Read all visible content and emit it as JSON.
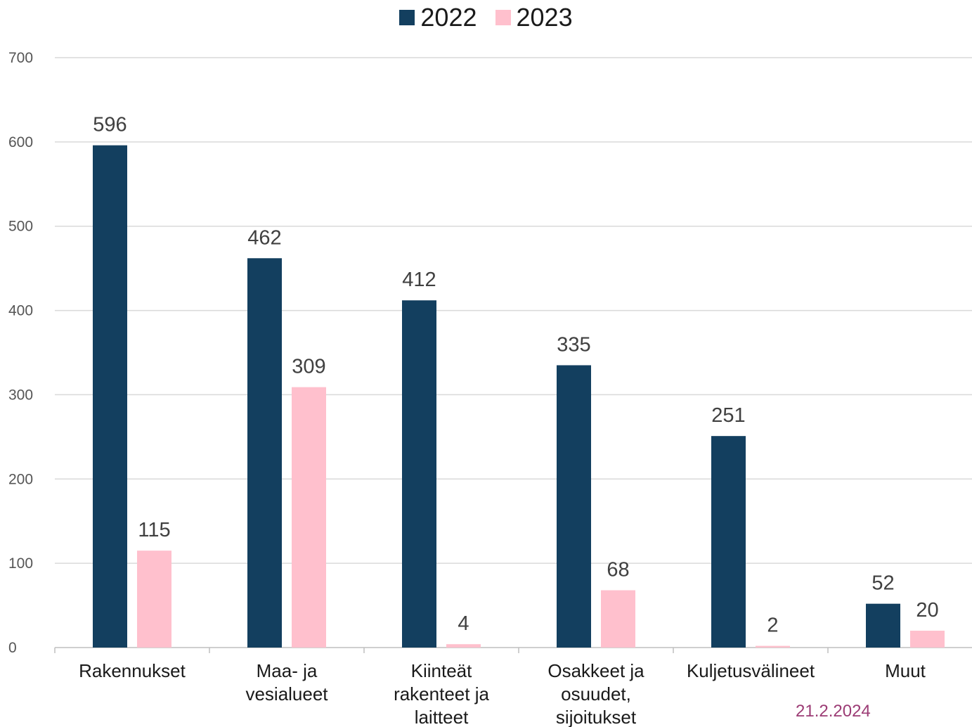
{
  "chart_data": {
    "type": "bar",
    "categories": [
      [
        "Rakennukset"
      ],
      [
        "Maa- ja",
        "vesialueet"
      ],
      [
        "Kiinteät",
        "rakenteet ja",
        "laitteet"
      ],
      [
        "Osakkeet ja",
        "osuudet,",
        "sijoitukset"
      ],
      [
        "Kuljetusvälineet"
      ],
      [
        "Muut"
      ]
    ],
    "series": [
      {
        "name": "2022",
        "values": [
          596,
          462,
          412,
          335,
          251,
          52
        ],
        "color": "#133f5f"
      },
      {
        "name": "2023",
        "values": [
          115,
          309,
          4,
          68,
          2,
          20
        ],
        "color": "#ffc0cd"
      }
    ],
    "ylim": [
      0,
      700
    ],
    "yticks": [
      0,
      100,
      200,
      300,
      400,
      500,
      600,
      700
    ],
    "grid": true,
    "legend_position": "top-center",
    "xlabel": "",
    "ylabel": ""
  },
  "footer": {
    "date": "21.2.2024"
  }
}
